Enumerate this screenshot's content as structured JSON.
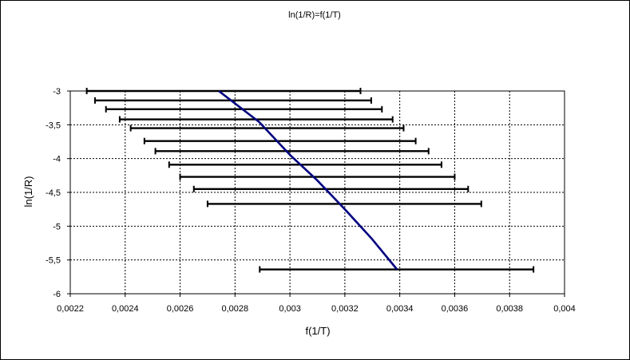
{
  "chart_data": {
    "type": "line",
    "title": "ln(1/R)=f(1/T)",
    "xlabel": "f(1/T)",
    "ylabel": "ln(1/R)",
    "xlim": [
      0.0022,
      0.004
    ],
    "ylim": [
      -6,
      -3
    ],
    "x_ticks": [
      "0,0022",
      "0,0024",
      "0,0026",
      "0,0028",
      "0,003",
      "0,0032",
      "0,0034",
      "0,0036",
      "0,0038",
      "0,004"
    ],
    "y_ticks": [
      "-3",
      "-3,5",
      "-4",
      "-4,5",
      "-5",
      "-5,5",
      "-6"
    ],
    "x_tick_values": [
      0.0022,
      0.0024,
      0.0026,
      0.0028,
      0.003,
      0.0032,
      0.0034,
      0.0036,
      0.0038,
      0.004
    ],
    "y_tick_values": [
      -3,
      -3.5,
      -4,
      -4.5,
      -5,
      -5.5,
      -6
    ],
    "grid": true,
    "series": [
      {
        "color": "#000080",
        "points": [
          {
            "x": 0.002741,
            "y": -3.0
          },
          {
            "x": 0.002888,
            "y": -3.46
          },
          {
            "x": 0.003001,
            "y": -3.95
          },
          {
            "x": 0.003099,
            "y": -4.32
          },
          {
            "x": 0.0032,
            "y": -4.75
          },
          {
            "x": 0.003297,
            "y": -5.18
          },
          {
            "x": 0.00339,
            "y": -5.64
          }
        ]
      }
    ],
    "error_bars": [
      {
        "y": -3.0,
        "xmin": 0.00226,
        "xmax": 0.003257
      },
      {
        "y": -3.14,
        "xmin": 0.00229,
        "xmax": 0.003296
      },
      {
        "y": -3.27,
        "xmin": 0.00233,
        "xmax": 0.003335
      },
      {
        "y": -3.42,
        "xmin": 0.00238,
        "xmax": 0.003374
      },
      {
        "y": -3.55,
        "xmin": 0.00242,
        "xmax": 0.003414
      },
      {
        "y": -3.74,
        "xmin": 0.00247,
        "xmax": 0.003458
      },
      {
        "y": -3.89,
        "xmin": 0.00251,
        "xmax": 0.003505
      },
      {
        "y": -4.09,
        "xmin": 0.00256,
        "xmax": 0.003552
      },
      {
        "y": -4.27,
        "xmin": 0.0026,
        "xmax": 0.0036
      },
      {
        "y": -4.45,
        "xmin": 0.00265,
        "xmax": 0.003649
      },
      {
        "y": -4.67,
        "xmin": 0.0027,
        "xmax": 0.003697
      },
      {
        "y": -5.64,
        "xmin": 0.00289,
        "xmax": 0.003887
      }
    ]
  }
}
